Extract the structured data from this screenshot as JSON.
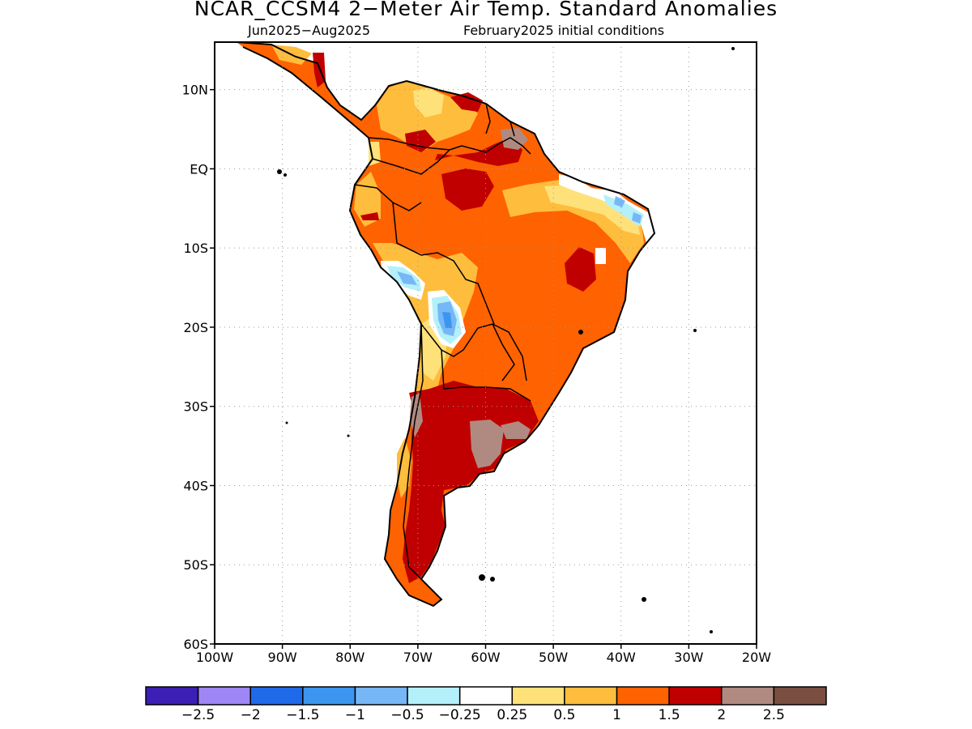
{
  "title": "NCAR_CCSM4 2−Meter Air Temp. Standard Anomalies",
  "subtitle_left": "Jun2025−Aug2025",
  "subtitle_right": "February2025 initial conditions",
  "map": {
    "lon_range": [
      -100,
      -20
    ],
    "lat_range": [
      -60,
      16
    ],
    "lat_ticks": [
      {
        "lat": 10,
        "label": "10N"
      },
      {
        "lat": 0,
        "label": "EQ"
      },
      {
        "lat": -10,
        "label": "10S"
      },
      {
        "lat": -20,
        "label": "20S"
      },
      {
        "lat": -30,
        "label": "30S"
      },
      {
        "lat": -40,
        "label": "40S"
      },
      {
        "lat": -50,
        "label": "50S"
      },
      {
        "lat": -60,
        "label": "60S"
      }
    ],
    "lon_ticks": [
      {
        "lon": -100,
        "label": "100W"
      },
      {
        "lon": -90,
        "label": "90W"
      },
      {
        "lon": -80,
        "label": "80W"
      },
      {
        "lon": -70,
        "label": "70W"
      },
      {
        "lon": -60,
        "label": "60W"
      },
      {
        "lon": -50,
        "label": "50W"
      },
      {
        "lon": -40,
        "label": "40W"
      },
      {
        "lon": -30,
        "label": "30W"
      },
      {
        "lon": -20,
        "label": "20W"
      }
    ],
    "grid": "dotted"
  },
  "colorbar": {
    "colors": [
      "#3c1fb4",
      "#9e87f5",
      "#1f6ae9",
      "#3c96f0",
      "#76b7f7",
      "#b4f0fa",
      "#ffffff",
      "#ffe17a",
      "#ffbd3d",
      "#ff6200",
      "#c00000",
      "#b08a80",
      "#7a4e40"
    ],
    "labels": [
      "−2.5",
      "−2",
      "−1.5",
      "−1",
      "−0.5",
      "−0.25",
      "0.25",
      "0.5",
      "1",
      "1.5",
      "2",
      "2.5"
    ]
  }
}
